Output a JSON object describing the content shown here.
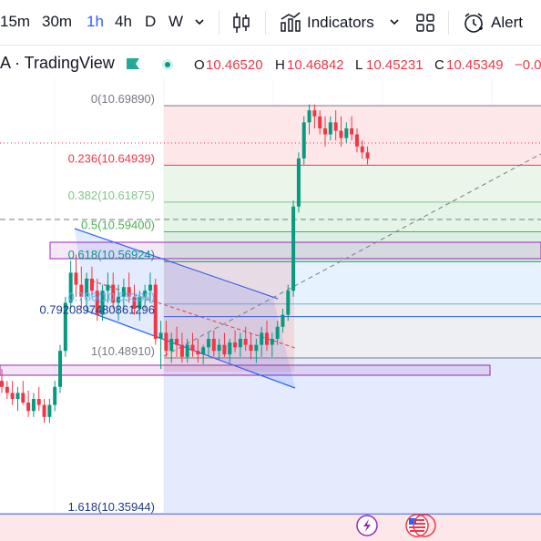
{
  "toolbar": {
    "timeframes": [
      "15m",
      "30m",
      "1h",
      "4h",
      "D",
      "W"
    ],
    "active_timeframe": "1h",
    "indicators_label": "Indicators",
    "alert_label": "Alert",
    "icons": [
      "chevron-down-icon",
      "candlestick-icon",
      "indicators-icon",
      "templates-icon",
      "alarm-clock-icon"
    ]
  },
  "legend": {
    "symbol": "A · TradingView",
    "ohlc": {
      "o_label": "O",
      "o_value": "10.46520",
      "h_label": "H",
      "h_value": "10.46842",
      "l_label": "L",
      "l_value": "10.45231",
      "c_label": "C",
      "c_value": "10.45349",
      "change": "−0.0"
    },
    "up_color": "#089981",
    "down_color": "#f23645"
  },
  "fib_levels": [
    {
      "label": "0(10.69890)",
      "price": 10.6989,
      "color": "#787b86"
    },
    {
      "label": "0.236(10.64939)",
      "price": 10.64939,
      "color": "#f23645"
    },
    {
      "label": "0.382(10.61875)",
      "price": 10.61875,
      "color": "#81c784"
    },
    {
      "label": "0.5(10.59400)",
      "price": 10.594,
      "color": "#4caf50"
    },
    {
      "label": "0.618(10.56924)",
      "price": 10.56924,
      "color": "#089981"
    },
    {
      "label": "0.786(10.53399)",
      "price": 10.53399,
      "color": "#64b5f6"
    },
    {
      "label": "0.7920897480861296",
      "price": 10.5235,
      "color": "#2962ff"
    },
    {
      "label": "1(10.48910)",
      "price": 10.4891,
      "color": "#787b86"
    },
    {
      "label": "1.618(10.35944)",
      "price": 10.35944,
      "color": "#2962ff"
    }
  ],
  "chart_data": {
    "type": "candlestick",
    "candles": [
      [
        10.47,
        10.48,
        10.46,
        10.465
      ],
      [
        10.465,
        10.47,
        10.455,
        10.46
      ],
      [
        10.46,
        10.47,
        10.45,
        10.455
      ],
      [
        10.455,
        10.465,
        10.445,
        10.46
      ],
      [
        10.46,
        10.47,
        10.45,
        10.452
      ],
      [
        10.452,
        10.462,
        10.44,
        10.445
      ],
      [
        10.445,
        10.46,
        10.44,
        10.455
      ],
      [
        10.455,
        10.465,
        10.445,
        10.45
      ],
      [
        10.45,
        10.455,
        10.435,
        10.44
      ],
      [
        10.44,
        10.455,
        10.435,
        10.45
      ],
      [
        10.45,
        10.47,
        10.445,
        10.465
      ],
      [
        10.465,
        10.5,
        10.46,
        10.495
      ],
      [
        10.495,
        10.54,
        10.49,
        10.535
      ],
      [
        10.535,
        10.57,
        10.53,
        10.56
      ],
      [
        10.56,
        10.575,
        10.54,
        10.55
      ],
      [
        10.55,
        10.565,
        10.53,
        10.54
      ],
      [
        10.54,
        10.56,
        10.53,
        10.555
      ],
      [
        10.555,
        10.565,
        10.54,
        10.545
      ],
      [
        10.545,
        10.555,
        10.52,
        10.525
      ],
      [
        10.525,
        10.55,
        10.52,
        10.545
      ],
      [
        10.545,
        10.56,
        10.535,
        10.55
      ],
      [
        10.55,
        10.56,
        10.53,
        10.535
      ],
      [
        10.535,
        10.55,
        10.52,
        10.54
      ],
      [
        10.54,
        10.555,
        10.53,
        10.548
      ],
      [
        10.548,
        10.56,
        10.535,
        10.54
      ],
      [
        10.54,
        10.55,
        10.525,
        10.53
      ],
      [
        10.53,
        10.545,
        10.52,
        10.54
      ],
      [
        10.54,
        10.55,
        10.53,
        10.545
      ],
      [
        10.545,
        10.56,
        10.535,
        10.55
      ],
      [
        10.55,
        10.555,
        10.5,
        10.505
      ],
      [
        10.505,
        10.52,
        10.48,
        10.51
      ],
      [
        10.51,
        10.52,
        10.49,
        10.495
      ],
      [
        10.495,
        10.51,
        10.485,
        10.505
      ],
      [
        10.505,
        10.515,
        10.49,
        10.5
      ],
      [
        10.5,
        10.51,
        10.485,
        10.49
      ],
      [
        10.49,
        10.505,
        10.485,
        10.5
      ],
      [
        10.5,
        10.51,
        10.49,
        10.495
      ],
      [
        10.495,
        10.505,
        10.485,
        10.492
      ],
      [
        10.492,
        10.5,
        10.484,
        10.498
      ],
      [
        10.498,
        10.51,
        10.49,
        10.505
      ],
      [
        10.505,
        10.512,
        10.49,
        10.495
      ],
      [
        10.495,
        10.505,
        10.488,
        10.5
      ],
      [
        10.5,
        10.51,
        10.49,
        10.492
      ],
      [
        10.492,
        10.505,
        10.485,
        10.502
      ],
      [
        10.502,
        10.512,
        10.494,
        10.498
      ],
      [
        10.498,
        10.51,
        10.49,
        10.505
      ],
      [
        10.505,
        10.515,
        10.495,
        10.5
      ],
      [
        10.5,
        10.51,
        10.488,
        10.495
      ],
      [
        10.495,
        10.505,
        10.485,
        10.5
      ],
      [
        10.5,
        10.515,
        10.49,
        10.51
      ],
      [
        10.51,
        10.52,
        10.495,
        10.5
      ],
      [
        10.5,
        10.51,
        10.49,
        10.505
      ],
      [
        10.505,
        10.52,
        10.5,
        10.515
      ],
      [
        10.515,
        10.53,
        10.51,
        10.525
      ],
      [
        10.525,
        10.55,
        10.52,
        10.545
      ],
      [
        10.545,
        10.62,
        10.54,
        10.615
      ],
      [
        10.615,
        10.66,
        10.61,
        10.655
      ],
      [
        10.655,
        10.69,
        10.65,
        10.685
      ],
      [
        10.685,
        10.7,
        10.675,
        10.695
      ],
      [
        10.695,
        10.7,
        10.68,
        10.69
      ],
      [
        10.69,
        10.695,
        10.675,
        10.68
      ],
      [
        10.68,
        10.69,
        10.665,
        10.675
      ],
      [
        10.675,
        10.69,
        10.67,
        10.685
      ],
      [
        10.685,
        10.695,
        10.67,
        10.678
      ],
      [
        10.678,
        10.69,
        10.665,
        10.672
      ],
      [
        10.672,
        10.685,
        10.668,
        10.68
      ],
      [
        10.68,
        10.69,
        10.67,
        10.675
      ],
      [
        10.675,
        10.68,
        10.66,
        10.665
      ],
      [
        10.665,
        10.67,
        10.655,
        10.66
      ],
      [
        10.66,
        10.665,
        10.65,
        10.655
      ]
    ]
  }
}
